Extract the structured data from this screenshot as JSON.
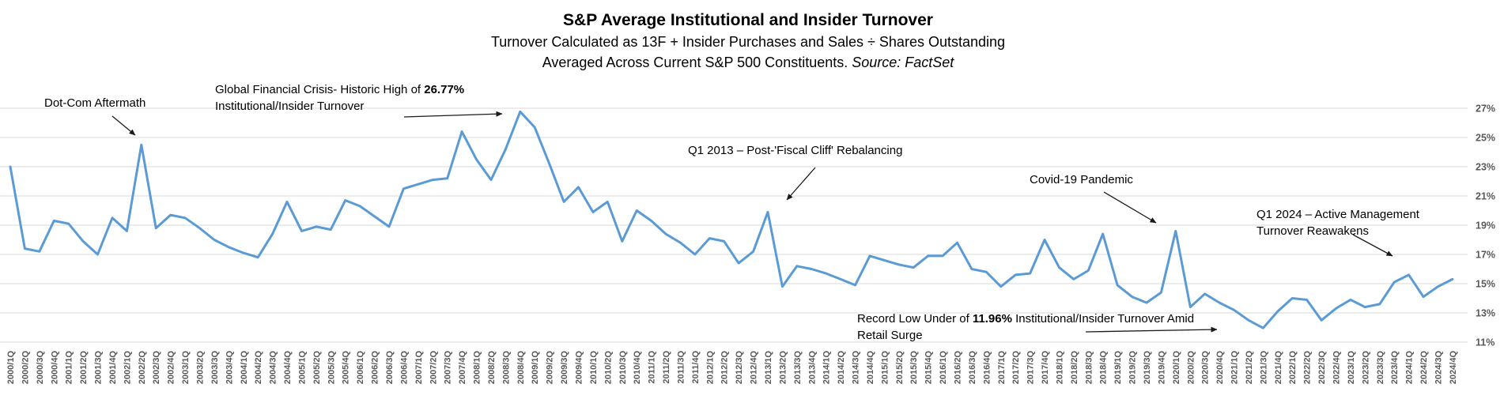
{
  "header": {
    "title": "S&P Average Institutional and Insider Turnover",
    "subtitle1": "Turnover Calculated as 13F + Insider Purchases and Sales ÷ Shares Outstanding",
    "subtitle2_pre": "Averaged Across Current S&P 500 Constituents. ",
    "subtitle2_source": "Source: FactSet"
  },
  "colors": {
    "line": "#5B9BD5",
    "grid": "#D9D9D9",
    "axis_text": "#595959",
    "annotation_text": "#000000",
    "arrow": "#1a1a1a"
  },
  "chart_data": {
    "type": "line",
    "title": "S&P Average Institutional and Insider Turnover",
    "xlabel": "",
    "ylabel": "",
    "ylim": [
      11,
      27
    ],
    "y_ticks": [
      "27%",
      "25%",
      "23%",
      "21%",
      "19%",
      "17%",
      "15%",
      "13%",
      "11%"
    ],
    "y_axis_side": "right",
    "grid": "horizontal",
    "legend": "none",
    "categories": [
      "2000/1Q",
      "2000/2Q",
      "2000/3Q",
      "2000/4Q",
      "2001/1Q",
      "2001/2Q",
      "2001/3Q",
      "2001/4Q",
      "2002/1Q",
      "2002/2Q",
      "2002/3Q",
      "2002/4Q",
      "2003/1Q",
      "2003/2Q",
      "2003/3Q",
      "2003/4Q",
      "2004/1Q",
      "2004/2Q",
      "2004/3Q",
      "2004/4Q",
      "2005/1Q",
      "2005/2Q",
      "2005/3Q",
      "2005/4Q",
      "2006/1Q",
      "2006/2Q",
      "2006/3Q",
      "2006/4Q",
      "2007/1Q",
      "2007/2Q",
      "2007/3Q",
      "2007/4Q",
      "2008/1Q",
      "2008/2Q",
      "2008/3Q",
      "2008/4Q",
      "2009/1Q",
      "2009/2Q",
      "2009/3Q",
      "2009/4Q",
      "2010/1Q",
      "2010/2Q",
      "2010/3Q",
      "2010/4Q",
      "2011/1Q",
      "2011/2Q",
      "2011/3Q",
      "2011/4Q",
      "2012/1Q",
      "2012/2Q",
      "2012/3Q",
      "2012/4Q",
      "2013/1Q",
      "2013/2Q",
      "2013/3Q",
      "2013/4Q",
      "2014/1Q",
      "2014/2Q",
      "2014/3Q",
      "2014/4Q",
      "2015/1Q",
      "2015/2Q",
      "2015/3Q",
      "2015/4Q",
      "2016/1Q",
      "2016/2Q",
      "2016/3Q",
      "2016/4Q",
      "2017/1Q",
      "2017/2Q",
      "2017/3Q",
      "2017/4Q",
      "2018/1Q",
      "2018/2Q",
      "2018/3Q",
      "2018/4Q",
      "2019/1Q",
      "2019/2Q",
      "2019/3Q",
      "2019/4Q",
      "2020/1Q",
      "2020/2Q",
      "2020/3Q",
      "2020/4Q",
      "2021/1Q",
      "2021/2Q",
      "2021/3Q",
      "2021/4Q",
      "2022/1Q",
      "2022/2Q",
      "2022/3Q",
      "2022/4Q",
      "2023/1Q",
      "2023/2Q",
      "2023/3Q",
      "2023/4Q",
      "2024/1Q",
      "2024/2Q",
      "2024/3Q",
      "2024/4Q"
    ],
    "series": [
      {
        "name": "Average Institutional and Insider Turnover",
        "color": "#5B9BD5",
        "values": [
          23.0,
          17.4,
          17.2,
          19.3,
          19.1,
          17.9,
          17.0,
          19.5,
          18.6,
          24.5,
          18.8,
          19.7,
          19.5,
          18.8,
          18.0,
          17.5,
          17.1,
          16.8,
          18.4,
          20.6,
          18.6,
          18.9,
          18.7,
          20.7,
          20.3,
          19.6,
          18.9,
          21.5,
          21.8,
          22.1,
          22.2,
          25.4,
          23.5,
          22.1,
          24.2,
          26.77,
          25.7,
          23.2,
          20.6,
          21.6,
          19.9,
          20.6,
          17.9,
          20.0,
          19.3,
          18.4,
          17.8,
          17.0,
          18.1,
          17.9,
          16.4,
          17.2,
          19.9,
          14.8,
          16.2,
          16.0,
          15.7,
          15.3,
          14.9,
          16.9,
          16.6,
          16.3,
          16.1,
          16.9,
          16.9,
          17.8,
          16.0,
          15.8,
          14.8,
          15.6,
          15.7,
          18.0,
          16.1,
          15.3,
          15.9,
          18.4,
          14.9,
          14.1,
          13.7,
          14.4,
          18.6,
          13.4,
          14.3,
          13.7,
          13.2,
          12.5,
          11.96,
          13.1,
          14.0,
          13.9,
          12.5,
          13.3,
          13.9,
          13.4,
          13.6,
          15.1,
          15.6,
          14.1,
          14.8,
          15.3
        ]
      }
    ],
    "notable_points": {
      "historic_high": {
        "category": "2008/4Q",
        "value": 26.77
      },
      "record_low": {
        "category": "2021/3Q",
        "value": 11.96
      }
    }
  },
  "annotations": {
    "dotcom": {
      "text": "Dot-Com Aftermath"
    },
    "gfc": {
      "line1_pre": "Global Financial Crisis- Historic High of ",
      "line1_bold": "26.77%",
      "line2": "Institutional/Insider Turnover"
    },
    "fiscal_cliff": {
      "text": "Q1 2013 – Post-'Fiscal Cliff' Rebalancing"
    },
    "covid": {
      "text": "Covid-19 Pandemic"
    },
    "q1_2024": {
      "line1": "Q1 2024 – Active Management",
      "line2": "Turnover Reawakens"
    },
    "record_low": {
      "line1_pre": "Record Low Under of ",
      "line1_bold": "11.96%",
      "line1_post": " Institutional/Insider Turnover Amid",
      "line2": "Retail Surge"
    }
  }
}
